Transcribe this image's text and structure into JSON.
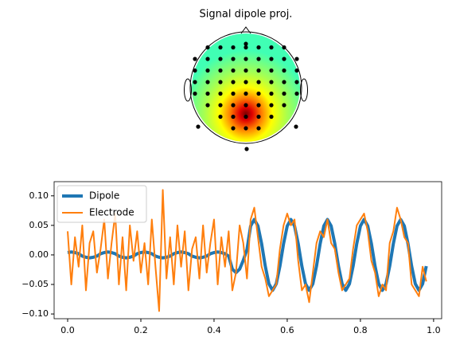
{
  "chart_data": [
    {
      "type": "topomap",
      "title": "Signal dipole proj."
    },
    {
      "type": "line",
      "x": [
        0,
        0.01,
        0.02,
        0.03,
        0.04,
        0.05,
        0.06,
        0.07,
        0.08,
        0.09,
        0.1,
        0.11,
        0.12,
        0.13,
        0.14,
        0.15,
        0.16,
        0.17,
        0.18,
        0.19,
        0.2,
        0.21,
        0.22,
        0.23,
        0.24,
        0.25,
        0.26,
        0.27,
        0.28,
        0.29,
        0.3,
        0.31,
        0.32,
        0.33,
        0.34,
        0.35,
        0.36,
        0.37,
        0.38,
        0.39,
        0.4,
        0.41,
        0.42,
        0.43,
        0.44,
        0.45,
        0.46,
        0.47,
        0.48,
        0.49,
        0.5,
        0.51,
        0.52,
        0.53,
        0.54,
        0.55,
        0.56,
        0.57,
        0.58,
        0.59,
        0.6,
        0.61,
        0.62,
        0.63,
        0.64,
        0.65,
        0.66,
        0.67,
        0.68,
        0.69,
        0.7,
        0.71,
        0.72,
        0.73,
        0.74,
        0.75,
        0.76,
        0.77,
        0.78,
        0.79,
        0.8,
        0.81,
        0.82,
        0.83,
        0.84,
        0.85,
        0.86,
        0.87,
        0.88,
        0.89,
        0.9,
        0.91,
        0.92,
        0.93,
        0.94,
        0.95,
        0.96,
        0.97,
        0.98
      ],
      "series": [
        {
          "name": "Dipole",
          "color": "#1f77b4",
          "values": [
            0.004,
            0.005,
            0.004,
            0.002,
            -0.002,
            -0.004,
            -0.005,
            -0.004,
            -0.002,
            0.002,
            0.004,
            0.005,
            0.004,
            0.002,
            -0.002,
            -0.004,
            -0.005,
            -0.004,
            -0.002,
            0.002,
            0.004,
            0.005,
            0.004,
            0.002,
            -0.002,
            -0.004,
            -0.005,
            -0.004,
            -0.002,
            0.002,
            0.004,
            0.005,
            0.004,
            0.002,
            -0.002,
            -0.004,
            -0.005,
            -0.004,
            -0.002,
            0.002,
            0.004,
            0.005,
            0.004,
            0.002,
            -0.002,
            -0.024,
            -0.03,
            -0.024,
            -0.009,
            0.009,
            0.049,
            0.06,
            0.049,
            0.019,
            -0.019,
            -0.049,
            -0.06,
            -0.049,
            -0.019,
            0.019,
            0.049,
            0.06,
            0.049,
            0.019,
            -0.019,
            -0.049,
            -0.06,
            -0.049,
            -0.019,
            0.019,
            0.049,
            0.06,
            0.049,
            0.019,
            -0.019,
            -0.049,
            -0.06,
            -0.049,
            -0.019,
            0.019,
            0.049,
            0.06,
            0.049,
            0.019,
            -0.019,
            -0.049,
            -0.06,
            -0.049,
            -0.019,
            0.019,
            0.049,
            0.06,
            0.049,
            0.019,
            -0.019,
            -0.049,
            -0.06,
            -0.049,
            -0.019
          ]
        },
        {
          "name": "Electrode",
          "color": "#ff7f0e",
          "values": [
            0.04,
            -0.05,
            0.03,
            -0.02,
            0.05,
            -0.06,
            0.02,
            0.04,
            -0.03,
            0.01,
            0.06,
            -0.04,
            0.02,
            0.07,
            -0.05,
            0.03,
            -0.06,
            0.05,
            -0.01,
            0.04,
            -0.03,
            0.02,
            -0.05,
            0.06,
            -0.02,
            -0.095,
            0.11,
            -0.04,
            0.03,
            -0.05,
            0.05,
            -0.02,
            0.04,
            -0.06,
            0.01,
            0.03,
            -0.04,
            0.05,
            -0.03,
            0.02,
            0.06,
            -0.05,
            0.03,
            -0.02,
            0.04,
            -0.06,
            -0.03,
            0.05,
            0.02,
            -0.04,
            0.06,
            0.08,
            0.03,
            -0.02,
            -0.04,
            -0.07,
            -0.06,
            -0.05,
            0.01,
            0.05,
            0.07,
            0.05,
            0.06,
            -0.01,
            -0.06,
            -0.05,
            -0.08,
            -0.03,
            0.02,
            0.04,
            0.03,
            0.06,
            0.02,
            0.01,
            -0.03,
            -0.06,
            -0.05,
            -0.04,
            0.01,
            0.05,
            0.06,
            0.07,
            0.04,
            -0.01,
            -0.03,
            -0.07,
            -0.05,
            -0.06,
            0.02,
            0.04,
            0.08,
            0.06,
            0.03,
            0.02,
            -0.05,
            -0.06,
            -0.07,
            -0.02,
            -0.045
          ]
        }
      ],
      "xlim": [
        -0.037,
        1.022
      ],
      "xticks": [
        {
          "value": 0,
          "label": "0.0"
        },
        {
          "value": 0.2,
          "label": "0.2"
        },
        {
          "value": 0.4,
          "label": "0.4"
        },
        {
          "value": 0.6,
          "label": "0.6"
        },
        {
          "value": 0.8,
          "label": "0.8"
        },
        {
          "value": 1,
          "label": "1.0"
        }
      ],
      "ylim": [
        -0.108,
        0.124
      ],
      "yticks": [
        {
          "value": -0.1,
          "label": "−0.10"
        },
        {
          "value": -0.05,
          "label": "−0.05"
        },
        {
          "value": 0,
          "label": "0.00"
        },
        {
          "value": 0.05,
          "label": "0.05"
        },
        {
          "value": 0.1,
          "label": "0.10"
        }
      ],
      "legend": "upper left",
      "grid": false
    }
  ]
}
